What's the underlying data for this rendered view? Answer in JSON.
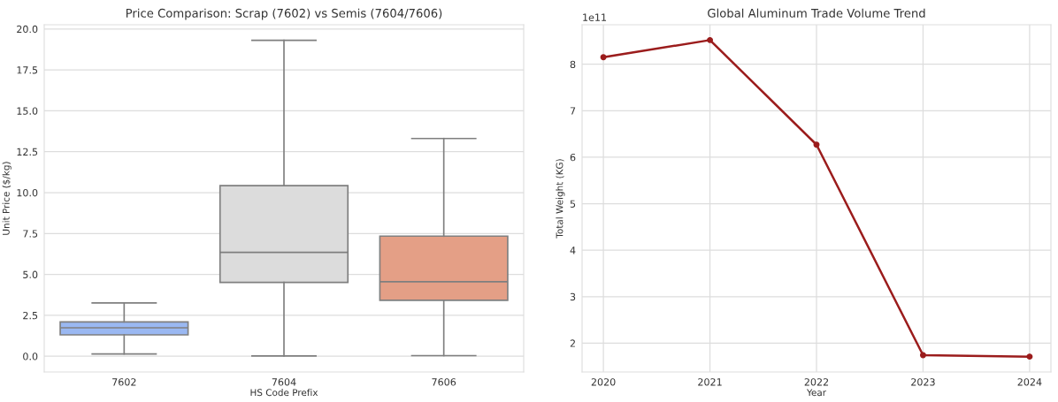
{
  "chart_data": [
    {
      "type": "box",
      "title": "Price Comparison: Scrap (7602) vs Semis (7604/7606)",
      "xlabel": "HS Code Prefix",
      "ylabel": "Unit Price ($/kg)",
      "categories": [
        "7602",
        "7604",
        "7606"
      ],
      "colors": [
        "#9ab8f2",
        "#dcdcdc",
        "#e49f86"
      ],
      "boxes": [
        {
          "low": 0.14,
          "q1": 1.31,
          "median": 1.74,
          "q3": 2.1,
          "high": 3.26
        },
        {
          "low": 0.02,
          "q1": 4.51,
          "median": 6.35,
          "q3": 10.43,
          "high": 19.31
        },
        {
          "low": 0.04,
          "q1": 3.42,
          "median": 4.55,
          "q3": 7.34,
          "high": 13.31
        }
      ],
      "ylim": [
        -0.96,
        20.26
      ],
      "yticks": [
        {
          "value": 0,
          "label": "0.0"
        },
        {
          "value": 2.5,
          "label": "2.5"
        },
        {
          "value": 5,
          "label": "5.0"
        },
        {
          "value": 7.5,
          "label": "7.5"
        },
        {
          "value": 10,
          "label": "10.0"
        },
        {
          "value": 12.5,
          "label": "12.5"
        },
        {
          "value": 15,
          "label": "15.0"
        },
        {
          "value": 17.5,
          "label": "17.5"
        },
        {
          "value": 20,
          "label": "20.0"
        }
      ],
      "grid": "y"
    },
    {
      "type": "line",
      "title": "Global Aluminum Trade Volume Trend",
      "xlabel": "Year",
      "ylabel": "Total Weight (KG)",
      "annotations": [
        "1e11"
      ],
      "x": [
        2020,
        2021,
        2022,
        2023,
        2024
      ],
      "series": [
        {
          "color": "#9b1c1c",
          "values": [
            8.15,
            8.52,
            6.27,
            1.74,
            1.71
          ]
        }
      ],
      "marker": "circle",
      "line_style": "solid",
      "xlim": [
        2019.8,
        2024.2
      ],
      "xticks": [
        2020,
        2021,
        2022,
        2023,
        2024
      ],
      "ylim": [
        1.38,
        8.85
      ],
      "yticks": [
        2,
        3,
        4,
        5,
        6,
        7,
        8
      ],
      "grid": true
    }
  ]
}
